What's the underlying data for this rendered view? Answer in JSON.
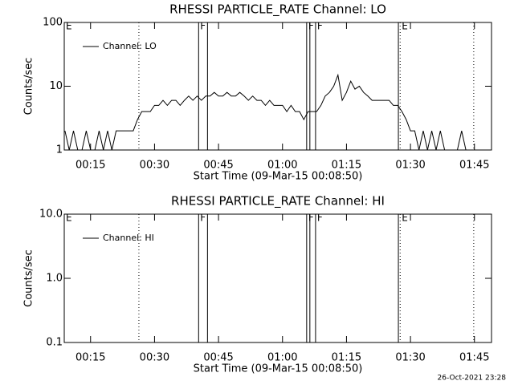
{
  "chart_data": [
    {
      "type": "line",
      "title": "RHESSI PARTICLE_RATE Channel: LO",
      "xlabel": "Start Time (09-Mar-15 00:08:50)",
      "ylabel": "Counts/sec",
      "log_y": true,
      "legend": "upper left",
      "xlim": [
        "00:08:50",
        "01:49"
      ],
      "xticks": [
        "00:15",
        "00:30",
        "00:45",
        "01:00",
        "01:15",
        "01:30",
        "01:45"
      ],
      "ylim": [
        1,
        100
      ],
      "yticks": [
        1,
        10,
        100
      ],
      "series": [
        {
          "name": "Channel: LO",
          "color": "#000000",
          "x": [
            "00:09",
            "00:10",
            "00:11",
            "00:12",
            "00:13",
            "00:14",
            "00:15",
            "00:16",
            "00:17",
            "00:18",
            "00:19",
            "00:20",
            "00:21",
            "00:22",
            "00:23",
            "00:24",
            "00:25",
            "00:26",
            "00:27",
            "00:28",
            "00:29",
            "00:30",
            "00:31",
            "00:32",
            "00:33",
            "00:34",
            "00:35",
            "00:36",
            "00:37",
            "00:38",
            "00:39",
            "00:40",
            "00:41",
            "00:42",
            "00:43",
            "00:44",
            "00:45",
            "00:46",
            "00:47",
            "00:48",
            "00:49",
            "00:50",
            "00:51",
            "00:52",
            "00:53",
            "00:54",
            "00:55",
            "00:56",
            "00:57",
            "00:58",
            "00:59",
            "01:00",
            "01:01",
            "01:02",
            "01:03",
            "01:04",
            "01:05",
            "01:06",
            "01:07",
            "01:08",
            "01:09",
            "01:10",
            "01:11",
            "01:12",
            "01:13",
            "01:14",
            "01:15",
            "01:16",
            "01:17",
            "01:18",
            "01:19",
            "01:20",
            "01:21",
            "01:22",
            "01:23",
            "01:24",
            "01:25",
            "01:26",
            "01:27",
            "01:28",
            "01:29",
            "01:30",
            "01:31",
            "01:32",
            "01:33",
            "01:34",
            "01:35",
            "01:36",
            "01:37",
            "01:38",
            "01:39",
            "01:40",
            "01:41",
            "01:42",
            "01:43",
            "01:44"
          ],
          "values": [
            2,
            1,
            2,
            1,
            1,
            2,
            1,
            1,
            2,
            1,
            2,
            1,
            2,
            2,
            2,
            2,
            2,
            3,
            4,
            4,
            4,
            5,
            5,
            6,
            5,
            6,
            6,
            5,
            6,
            7,
            6,
            7,
            6,
            7,
            7,
            8,
            7,
            7,
            8,
            7,
            7,
            8,
            7,
            6,
            7,
            6,
            6,
            5,
            6,
            5,
            5,
            5,
            4,
            5,
            4,
            4,
            3,
            4,
            4,
            4,
            5,
            7,
            8,
            10,
            15,
            6,
            8,
            12,
            9,
            10,
            8,
            7,
            6,
            6,
            6,
            6,
            6,
            5,
            5,
            4,
            3,
            2,
            2,
            1,
            2,
            1,
            2,
            1,
            2,
            1,
            1,
            1,
            1,
            2,
            1,
            1
          ]
        }
      ],
      "markers": [
        {
          "x": "00:08:50",
          "style": "solid",
          "label": "E"
        },
        {
          "x": "00:26:20",
          "style": "dotted"
        },
        {
          "x": "00:40:20",
          "style": "solid",
          "label": "F"
        },
        {
          "x": "00:42:25",
          "style": "solid"
        },
        {
          "x": "01:05:40",
          "style": "solid",
          "label": "F"
        },
        {
          "x": "01:06:25",
          "style": "solid"
        },
        {
          "x": "01:07:45",
          "style": "solid",
          "label": "F"
        },
        {
          "x": "01:27:10",
          "style": "solid"
        },
        {
          "x": "01:27:35",
          "style": "dotted",
          "label": "E"
        },
        {
          "x": "01:44:50",
          "style": "dotted"
        }
      ]
    },
    {
      "type": "line",
      "title": "RHESSI PARTICLE_RATE Channel: HI",
      "xlabel": "Start Time (09-Mar-15 00:08:50)",
      "ylabel": "Counts/sec",
      "log_y": true,
      "legend": "upper left",
      "xlim": [
        "00:08:50",
        "01:49"
      ],
      "xticks": [
        "00:15",
        "00:30",
        "00:45",
        "01:00",
        "01:15",
        "01:30",
        "01:45"
      ],
      "ylim": [
        0.1,
        10
      ],
      "yticks": [
        0.1,
        {
          "value": 1,
          "label": "1.0"
        },
        {
          "value": 10,
          "label": "10.0"
        }
      ],
      "series": [
        {
          "name": "Channel: HI",
          "color": "#000000",
          "x": [],
          "values": []
        }
      ],
      "markers": [
        {
          "x": "00:08:50",
          "style": "solid",
          "label": "E"
        },
        {
          "x": "00:26:20",
          "style": "dotted"
        },
        {
          "x": "00:40:20",
          "style": "solid",
          "label": "F"
        },
        {
          "x": "00:42:25",
          "style": "solid"
        },
        {
          "x": "01:05:40",
          "style": "solid",
          "label": "F"
        },
        {
          "x": "01:06:25",
          "style": "solid"
        },
        {
          "x": "01:07:45",
          "style": "solid",
          "label": "F"
        },
        {
          "x": "01:27:10",
          "style": "solid"
        },
        {
          "x": "01:27:35",
          "style": "dotted",
          "label": "E"
        },
        {
          "x": "01:44:50",
          "style": "dotted"
        }
      ]
    }
  ],
  "footer": "26-Oct-2021 23:28"
}
